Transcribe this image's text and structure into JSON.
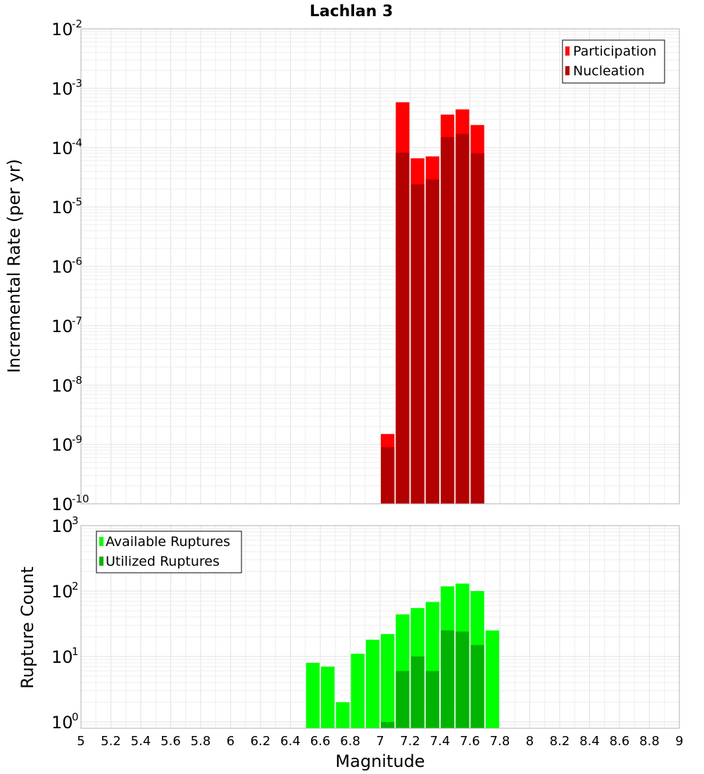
{
  "chart_data": [
    {
      "type": "bar",
      "title": "Lachlan 3",
      "ylabel": "Incremental Rate (per yr)",
      "xlabel": "",
      "yscale": "log",
      "ylim": [
        1e-10,
        0.01
      ],
      "xlim": [
        5,
        9
      ],
      "y_ticks": [
        {
          "base": "10",
          "exp": "-2"
        },
        {
          "base": "10",
          "exp": "-3"
        },
        {
          "base": "10",
          "exp": "-4"
        },
        {
          "base": "10",
          "exp": "-5"
        },
        {
          "base": "10",
          "exp": "-6"
        },
        {
          "base": "10",
          "exp": "-7"
        },
        {
          "base": "10",
          "exp": "-8"
        },
        {
          "base": "10",
          "exp": "-9"
        },
        {
          "base": "10",
          "exp": "-10"
        }
      ],
      "bin_width": 0.1,
      "legend_position": "top-right",
      "grid": true,
      "series": [
        {
          "name": "Participation",
          "color": "#ff0000",
          "x": [
            7.05,
            7.15,
            7.25,
            7.35,
            7.45,
            7.55,
            7.65
          ],
          "values": [
            1.5e-09,
            0.00058,
            6.6e-05,
            7.1e-05,
            0.00036,
            0.00044,
            0.00024
          ]
        },
        {
          "name": "Nucleation",
          "color": "#b30000",
          "x": [
            7.05,
            7.15,
            7.25,
            7.35,
            7.45,
            7.55,
            7.65
          ],
          "values": [
            9e-10,
            8.2e-05,
            2.4e-05,
            2.9e-05,
            0.00015,
            0.00017,
            8e-05
          ]
        }
      ]
    },
    {
      "type": "bar",
      "title": "",
      "ylabel": "Rupture Count",
      "xlabel": "Magnitude",
      "yscale": "log",
      "ylim": [
        0.8,
        1000
      ],
      "xlim": [
        5,
        9
      ],
      "y_ticks": [
        {
          "base": "10",
          "exp": "3"
        },
        {
          "base": "10",
          "exp": "2"
        },
        {
          "base": "10",
          "exp": "1"
        },
        {
          "base": "10",
          "exp": "0"
        }
      ],
      "x_ticks": [
        "5",
        "5.2",
        "5.4",
        "5.6",
        "5.8",
        "6",
        "6.2",
        "6.4",
        "6.6",
        "6.8",
        "7",
        "7.2",
        "7.4",
        "7.6",
        "7.8",
        "8",
        "8.2",
        "8.4",
        "8.6",
        "8.8",
        "9"
      ],
      "bin_width": 0.1,
      "legend_position": "top-left",
      "grid": true,
      "series": [
        {
          "name": "Available Ruptures",
          "color": "#00ff00",
          "x": [
            6.55,
            6.65,
            6.75,
            6.85,
            6.95,
            7.05,
            7.15,
            7.25,
            7.35,
            7.45,
            7.55,
            7.65,
            7.75
          ],
          "values": [
            8,
            7,
            2,
            11,
            18,
            22,
            44,
            55,
            68,
            118,
            130,
            100,
            25
          ]
        },
        {
          "name": "Utilized Ruptures",
          "color": "#00b300",
          "x": [
            7.05,
            7.15,
            7.25,
            7.35,
            7.45,
            7.55,
            7.65
          ],
          "values": [
            1,
            6,
            10,
            6,
            25,
            24,
            15
          ]
        }
      ]
    }
  ]
}
